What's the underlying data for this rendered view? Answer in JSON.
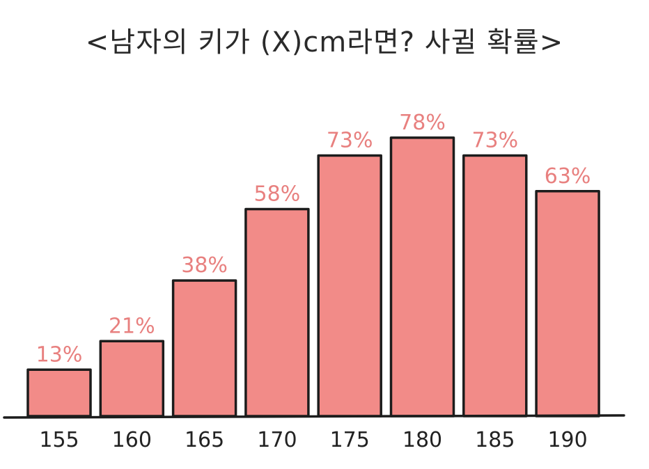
{
  "colors": {
    "bar_fill": "#f28b88",
    "label_text": "#e8807f",
    "outline": "#1c1c1c",
    "background": "#ffffff"
  },
  "chart_data": {
    "type": "bar",
    "title": "<남자의 키가 (X)cm라면? 사귈 확률>",
    "xlabel": "",
    "ylabel": "",
    "categories": [
      "155",
      "160",
      "165",
      "170",
      "175",
      "180",
      "185",
      "190"
    ],
    "values": [
      13,
      21,
      38,
      58,
      73,
      78,
      73,
      63
    ],
    "data_labels": [
      "13%",
      "21%",
      "38%",
      "58%",
      "73%",
      "78%",
      "73%",
      "63%"
    ],
    "ylim": [
      0,
      100
    ],
    "grid": false,
    "legend": "none"
  }
}
